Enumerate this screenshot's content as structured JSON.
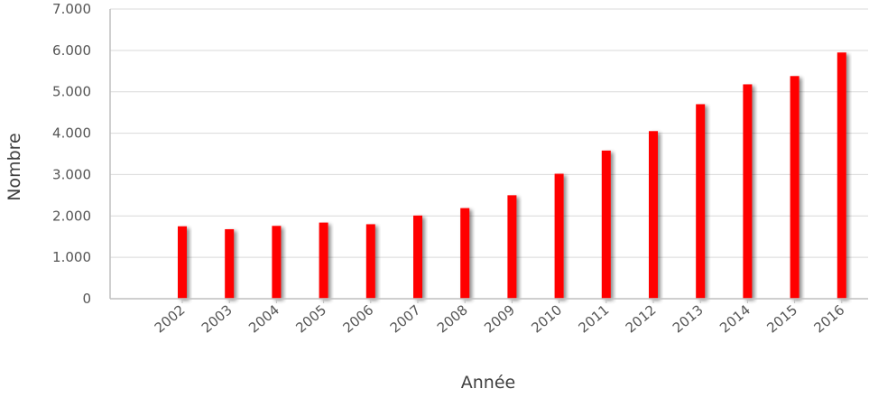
{
  "chart_data": {
    "type": "bar",
    "xlabel": "Année",
    "ylabel": "Nombre",
    "categories": [
      "2002",
      "2003",
      "2004",
      "2005",
      "2006",
      "2007",
      "2008",
      "2009",
      "2010",
      "2011",
      "2012",
      "2013",
      "2014",
      "2015",
      "2016"
    ],
    "series": [
      {
        "values": [
          1750,
          1680,
          1760,
          1840,
          1800,
          2010,
          2190,
          2500,
          3020,
          3580,
          4050,
          4700,
          5180,
          5380,
          5950
        ]
      }
    ],
    "ylim": [
      0,
      7000
    ],
    "yticks": [
      0,
      1000,
      2000,
      3000,
      4000,
      5000,
      6000,
      7000
    ],
    "ytick_labels": [
      "0",
      "1.000",
      "2.000",
      "3.000",
      "4.000",
      "5.000",
      "6.000",
      "7.000"
    ],
    "grid": true,
    "legend": false,
    "bar_color": "#ff0000"
  }
}
